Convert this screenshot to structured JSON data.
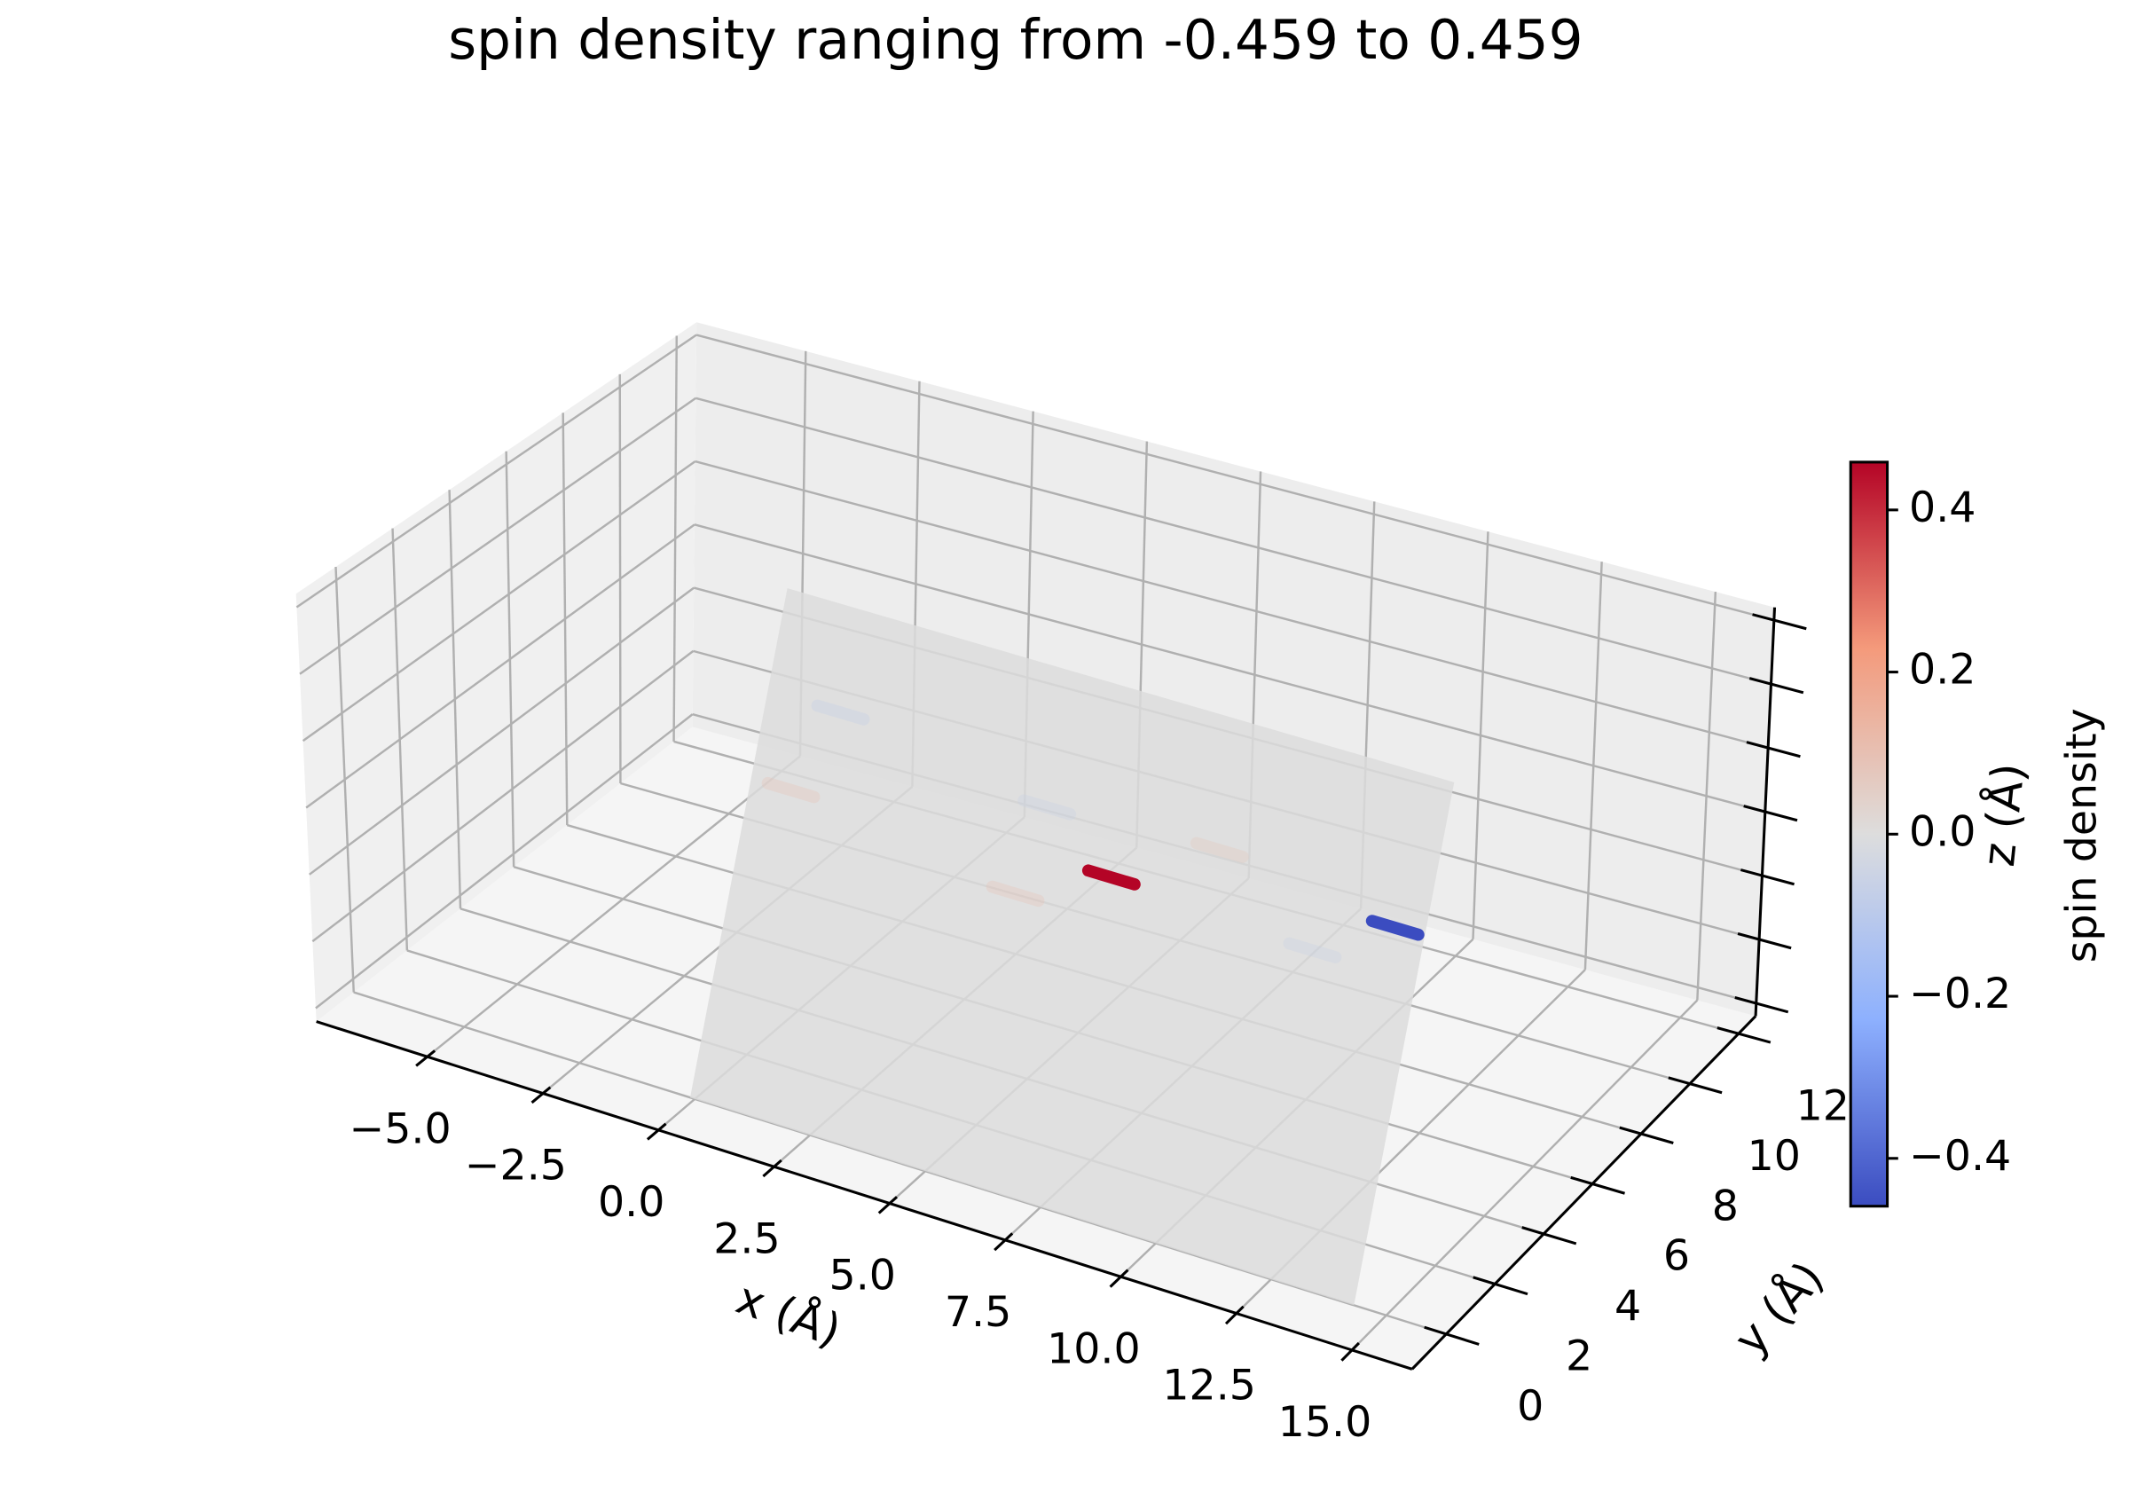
{
  "chart_data": {
    "type": "surface3d",
    "title": "spin density ranging from -0.459 to 0.459",
    "xlabel": "x (Å)",
    "ylabel": "y (Å)",
    "zlabel": "z (Å)",
    "xlim": [
      -7.4,
      16.3
    ],
    "ylim": [
      -1.4,
      12.7
    ],
    "zlim": [
      -3.2,
      3.2
    ],
    "xticks": [
      {
        "value": -5,
        "label": "−5.0"
      },
      {
        "value": -2.5,
        "label": "−2.5"
      },
      {
        "value": 0,
        "label": "0.0"
      },
      {
        "value": 2.5,
        "label": "2.5"
      },
      {
        "value": 5,
        "label": "5.0"
      },
      {
        "value": 7.5,
        "label": "7.5"
      },
      {
        "value": 10,
        "label": "10.0"
      },
      {
        "value": 12.5,
        "label": "12.5"
      },
      {
        "value": 15,
        "label": "15.0"
      }
    ],
    "yticks": [
      0,
      2,
      4,
      6,
      8,
      10,
      12
    ],
    "zticks": [
      -3,
      -2,
      -1,
      0,
      1,
      2,
      3
    ],
    "grid": true,
    "surface": {
      "x": [
        -0.1,
        14.3
      ],
      "y": [
        0,
        4
      ],
      "z": [
        -3.2,
        3.2
      ],
      "color": "#dcdcdc"
    },
    "spots": {
      "x": [
        7.7,
        13.7,
        5.8,
        9.8,
        0.8,
        6.1,
        1.5,
        12.1
      ],
      "z": [
        0.9,
        1.3,
        0.37,
        1.6,
        0.8,
        1.5,
        1.9,
        0.75
      ],
      "values": [
        0.459,
        -0.459,
        0.1,
        0.08,
        0.1,
        -0.06,
        -0.08,
        -0.06
      ]
    },
    "colorbar": {
      "label": "spin density",
      "cmap": "coolwarm",
      "clim": [
        -0.459,
        0.459
      ],
      "ticks": [
        {
          "value": 0.4,
          "label": "0.4"
        },
        {
          "value": 0.2,
          "label": "0.2"
        },
        {
          "value": 0,
          "label": "0.0"
        },
        {
          "value": -0.2,
          "label": "−0.2"
        },
        {
          "value": -0.4,
          "label": "−0.4"
        }
      ]
    }
  }
}
